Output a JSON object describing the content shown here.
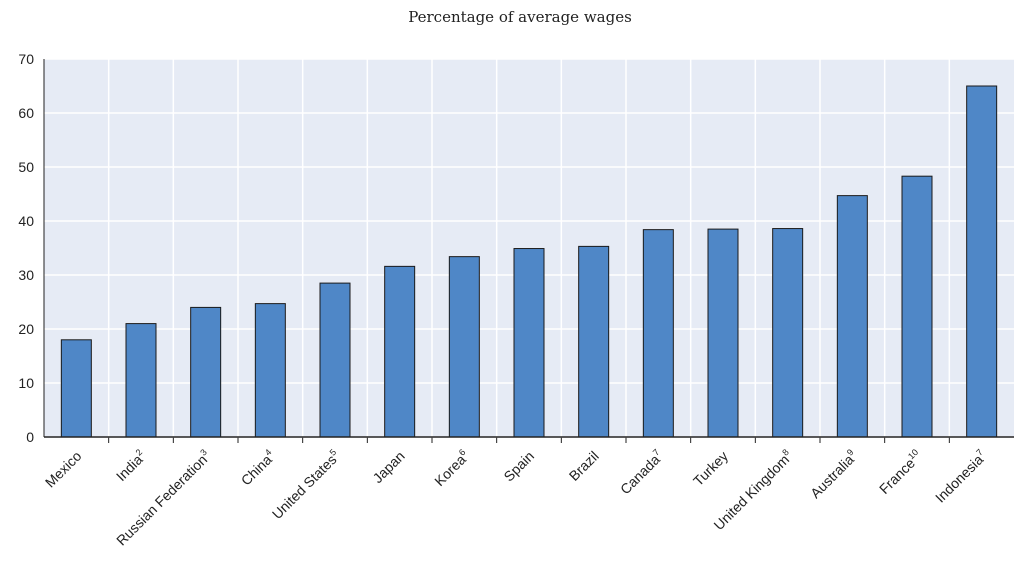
{
  "chart_data": {
    "type": "bar",
    "subtitle": "Percentage of average wages",
    "categories": [
      "Mexico",
      "India",
      "Russian Federation",
      "China",
      "United States",
      "Japan",
      "Korea",
      "Spain",
      "Brazil",
      "Canada",
      "Turkey",
      "United Kingdom",
      "Australia",
      "France",
      "Indonesia"
    ],
    "category_notes": [
      null,
      "2",
      "3",
      "4",
      "5",
      null,
      "6",
      null,
      null,
      "7",
      null,
      "8",
      "9",
      "10",
      "7"
    ],
    "values": [
      18,
      21,
      24,
      24.7,
      28.5,
      31.6,
      33.4,
      34.9,
      35.3,
      38.4,
      38.5,
      38.6,
      44.7,
      48.3,
      65
    ],
    "color": "#4f87c7",
    "ylim": [
      0,
      70
    ],
    "yticks": [
      0,
      10,
      20,
      30,
      40,
      50,
      60,
      70
    ],
    "grid": true
  }
}
